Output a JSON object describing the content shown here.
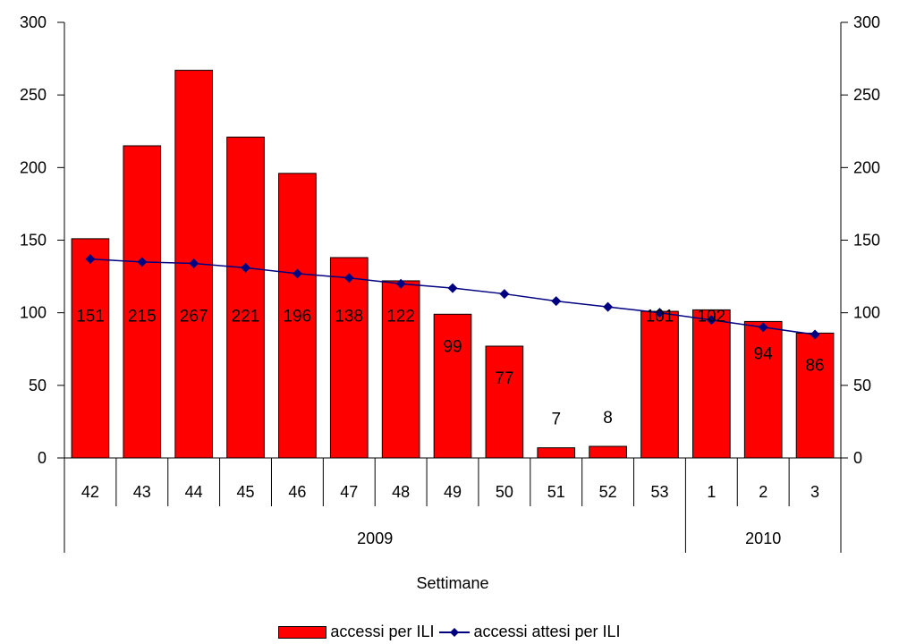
{
  "chart_data": {
    "type": "bar",
    "categories": [
      "42",
      "43",
      "44",
      "45",
      "46",
      "47",
      "48",
      "49",
      "50",
      "51",
      "52",
      "53",
      "1",
      "2",
      "3"
    ],
    "year_groups": [
      {
        "label": "2009",
        "count": 12
      },
      {
        "label": "2010",
        "count": 3
      }
    ],
    "series": [
      {
        "name": "accessi per ILI",
        "type": "bar",
        "values": [
          151,
          215,
          267,
          221,
          196,
          138,
          122,
          99,
          77,
          7,
          8,
          101,
          102,
          94,
          86
        ],
        "labels": [
          "151",
          "215",
          "267",
          "221",
          "196",
          "138",
          "122",
          "99",
          "77",
          "7",
          "8",
          "101",
          "102",
          "94",
          "86"
        ]
      },
      {
        "name": "accessi attesi per ILI",
        "type": "line",
        "values": [
          137,
          135,
          134,
          131,
          127,
          124,
          120,
          117,
          113,
          108,
          104,
          100,
          95,
          90,
          85
        ]
      }
    ],
    "title": "",
    "xlabel": "Settimane",
    "ylabel": "",
    "ylim": [
      0,
      300
    ],
    "yticks": [
      "0",
      "50",
      "100",
      "150",
      "200",
      "250",
      "300"
    ],
    "secondary_y": true,
    "grid": false,
    "legend_position": "bottom",
    "colors": {
      "bar": "#ff0000",
      "line": "#000080"
    }
  }
}
